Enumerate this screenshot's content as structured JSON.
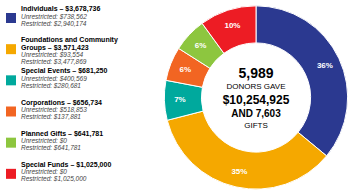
{
  "chart_data": {
    "type": "pie",
    "values": [
      36,
      35,
      7,
      6,
      6,
      10
    ],
    "value_labels": [
      "36%",
      "35%",
      "7%",
      "6%",
      "6%",
      "10%"
    ],
    "data_labels": true,
    "colors": [
      "#2b3990",
      "#f5a800",
      "#00a99d",
      "#f26522",
      "#8dc63f",
      "#ed1c24"
    ],
    "legend": "left",
    "legend_items": [
      {
        "lines": [
          "Individuals – $3,678,736"
        ],
        "notes": [
          "Unrestricted: $738,562",
          "Restricted: $2,940,174"
        ]
      },
      {
        "lines": [
          "Foundations and Community",
          "Groups – $3,571,423"
        ],
        "notes": [
          "Unrestricted: $93,554",
          "Restricted: $3,477,869"
        ]
      },
      {
        "lines": [
          "Special Events – $681,250"
        ],
        "notes": [
          "Unrestricted: $400,569",
          "Restricted: $280,681"
        ]
      },
      {
        "lines": [
          "Corporations – $656,734"
        ],
        "notes": [
          "Unrestricted: $518,853",
          "Restricted: $137,881"
        ]
      },
      {
        "lines": [
          "Planned Gifts – $641,781"
        ],
        "notes": [
          "Unrestricted: $0",
          "Restricted: $641,781"
        ]
      },
      {
        "lines": [
          "Special Funds – $1,025,000"
        ],
        "notes": [
          "Unrestricted: $0",
          "Restricted: $1,025,000"
        ]
      }
    ],
    "annotations": [
      "5,989",
      "DONORS GAVE",
      "$10,254,925",
      "AND 7,603",
      "GIFTS"
    ]
  }
}
